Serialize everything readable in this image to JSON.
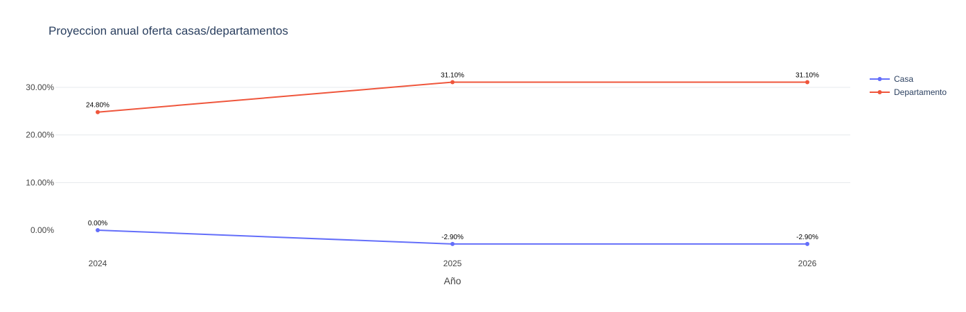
{
  "chart_data": {
    "type": "line",
    "title": "Proyeccion anual oferta casas/departamentos",
    "xlabel": "Año",
    "ylabel": "",
    "x": [
      "2024",
      "2025",
      "2026"
    ],
    "ylim": [
      -5,
      38
    ],
    "yticks": [
      0,
      10,
      20,
      30
    ],
    "ytick_labels": [
      "0.00%",
      "10.00%",
      "20.00%",
      "30.00%"
    ],
    "grid": true,
    "legend": "right",
    "series": [
      {
        "name": "Casa",
        "color": "#636efa",
        "values": [
          0.0,
          -2.9,
          -2.9
        ],
        "labels": [
          "0.00%",
          "-2.90%",
          "-2.90%"
        ]
      },
      {
        "name": "Departamento",
        "color": "#ef553b",
        "values": [
          24.8,
          31.1,
          31.1
        ],
        "labels": [
          "24.80%",
          "31.10%",
          "31.10%"
        ]
      }
    ]
  }
}
